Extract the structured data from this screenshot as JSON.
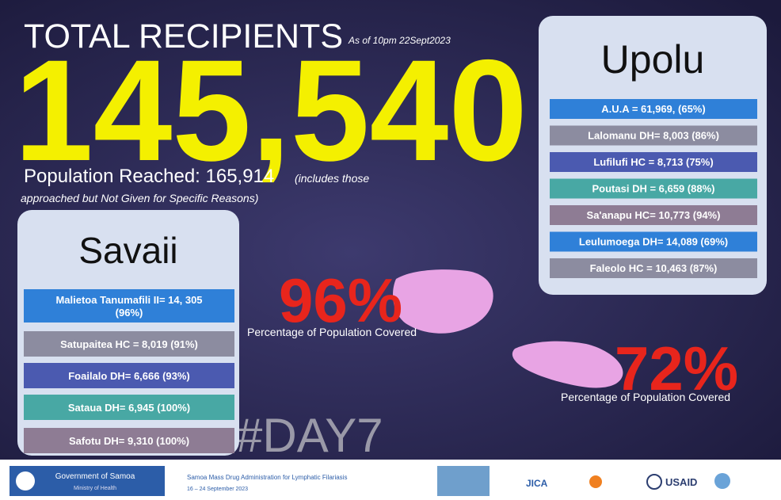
{
  "header": {
    "title": "TOTAL RECIPIENTS",
    "as_of": "As of  10pm 22Sept2023",
    "total": "145,540",
    "population_reached": "Population Reached: 165,914",
    "note_line1": "(includes those",
    "note_line2": "approached but Not Given for Specific Reasons)"
  },
  "savaii": {
    "title": "Savaii",
    "rows": [
      [
        "Malietoa Tanumafili II= 14, 305",
        "(96%)"
      ],
      [
        "Satupaitea HC = 8,019 (91%)"
      ],
      [
        "Foailalo DH= 6,666 (93%)"
      ],
      [
        "Sataua DH= 6,945 (100%)"
      ],
      [
        "Safotu DH= 9,310 (100%)"
      ]
    ],
    "coverage": "96%",
    "coverage_label": "Percentage of Population Covered"
  },
  "upolu": {
    "title": "Upolu",
    "rows": [
      "A.U.A = 61,969, (65%)",
      "Lalomanu DH= 8,003 (86%)",
      "Lufilufi HC = 8,713 (75%)",
      "Poutasi DH = 6,659 (88%)",
      "Sa'anapu HC= 10,773 (94%)",
      "Leulumoega DH= 14,089 (69%)",
      "Faleolo HC = 10,463 (87%)"
    ],
    "coverage": "72%",
    "coverage_label": "Percentage of Population Covered"
  },
  "hashtag": "#DAY7",
  "footer": {
    "gov_line1": "Government of Samoa",
    "gov_line2": "Ministry of Health",
    "campaign_line1": "Samoa Mass Drug Administration for Lymphatic Filariasis",
    "campaign_line2": "16 – 24 September 2023",
    "jica": "JICA",
    "usaid": "USAID"
  }
}
